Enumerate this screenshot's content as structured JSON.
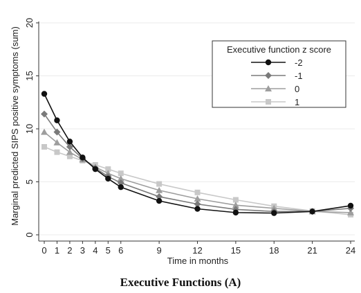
{
  "caption": "Executive Functions (A)",
  "chart_data": {
    "type": "line",
    "title": "",
    "xlabel": "Time in months",
    "ylabel": "Marginal predicted SIPS positive symptoms (sum)",
    "x": [
      0,
      1,
      2,
      3,
      4,
      5,
      6,
      9,
      12,
      15,
      18,
      21,
      24
    ],
    "x_ticks": [
      0,
      1,
      2,
      3,
      4,
      5,
      6,
      9,
      12,
      15,
      18,
      21,
      24
    ],
    "y_ticks": [
      0,
      5,
      10,
      15,
      20
    ],
    "xlim": [
      0,
      24
    ],
    "ylim": [
      0,
      20
    ],
    "grid": true,
    "legend": {
      "title": "Executive function z score",
      "placement": "top-right"
    },
    "series": [
      {
        "name": "-2",
        "marker": "circle",
        "color": "#111111",
        "values": [
          13.3,
          10.8,
          8.8,
          7.3,
          6.2,
          5.3,
          4.5,
          3.2,
          2.45,
          2.1,
          2.05,
          2.2,
          2.75
        ]
      },
      {
        "name": "-1",
        "marker": "diamond",
        "color": "#7a7a7a",
        "values": [
          11.4,
          9.7,
          8.3,
          7.2,
          6.3,
          5.5,
          4.9,
          3.6,
          2.9,
          2.4,
          2.2,
          2.2,
          2.5
        ]
      },
      {
        "name": "0",
        "marker": "triangle",
        "color": "#9e9e9e",
        "values": [
          9.7,
          8.7,
          7.8,
          7.1,
          6.4,
          5.8,
          5.3,
          4.2,
          3.4,
          2.8,
          2.5,
          2.2,
          2.1
        ]
      },
      {
        "name": "1",
        "marker": "square",
        "color": "#c8c8c8",
        "values": [
          8.3,
          7.8,
          7.4,
          7.0,
          6.6,
          6.2,
          5.8,
          4.8,
          4.0,
          3.3,
          2.7,
          2.25,
          1.9
        ]
      }
    ]
  }
}
